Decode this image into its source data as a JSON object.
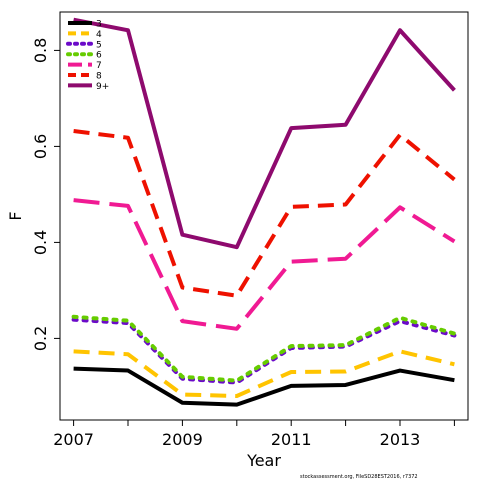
{
  "chart_data": {
    "type": "line",
    "xlabel": "Year",
    "ylabel": "F",
    "xlim": [
      2006.75,
      2014.25
    ],
    "ylim": [
      0.03,
      0.88
    ],
    "x": [
      2007,
      2008,
      2009,
      2010,
      2011,
      2012,
      2013,
      2014
    ],
    "x_ticks": [
      2007,
      2009,
      2011,
      2013
    ],
    "x_minor_ticks": [
      2007,
      2008,
      2009,
      2010,
      2011,
      2012,
      2013,
      2014
    ],
    "x_tick_labels": [
      "2007",
      "2009",
      "2011",
      "2013"
    ],
    "y_ticks": [
      0.2,
      0.4,
      0.6,
      0.8
    ],
    "y_tick_labels": [
      "0.2",
      "0.4",
      "0.6",
      "0.8"
    ],
    "grid": false,
    "legend_position": "top-left",
    "series": [
      {
        "name": "3",
        "color": "#000000",
        "dash": "solid",
        "values": [
          0.137,
          0.133,
          0.066,
          0.062,
          0.101,
          0.103,
          0.133,
          0.113
        ]
      },
      {
        "name": "4",
        "color": "#FFC400",
        "dash": "dashed",
        "values": [
          0.173,
          0.167,
          0.083,
          0.08,
          0.13,
          0.131,
          0.173,
          0.146
        ]
      },
      {
        "name": "5",
        "color": "#6B0AC9",
        "dash": "dotted",
        "values": [
          0.239,
          0.232,
          0.116,
          0.108,
          0.18,
          0.183,
          0.236,
          0.206
        ]
      },
      {
        "name": "6",
        "color": "#66CC00",
        "dash": "dotted",
        "values": [
          0.245,
          0.237,
          0.12,
          0.112,
          0.184,
          0.186,
          0.243,
          0.21
        ]
      },
      {
        "name": "7",
        "color": "#F01A93",
        "dash": "longdash",
        "values": [
          0.488,
          0.476,
          0.236,
          0.22,
          0.36,
          0.366,
          0.473,
          0.402
        ]
      },
      {
        "name": "8",
        "color": "#EE1100",
        "dash": "dashed",
        "values": [
          0.632,
          0.618,
          0.306,
          0.289,
          0.474,
          0.479,
          0.624,
          0.531
        ]
      },
      {
        "name": "9+",
        "color": "#8E0A6E",
        "dash": "solid",
        "values": [
          0.864,
          0.842,
          0.416,
          0.39,
          0.638,
          0.645,
          0.842,
          0.717
        ]
      }
    ]
  },
  "footer": "stockassessment.org, FileSD28EST2016, r7372"
}
